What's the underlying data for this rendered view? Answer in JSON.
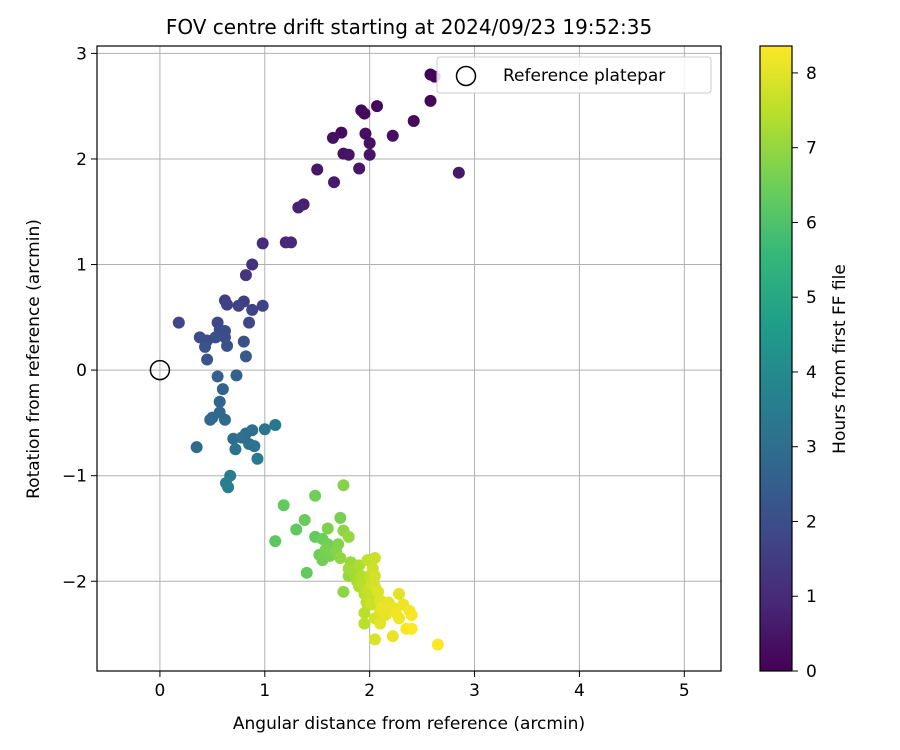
{
  "chart_data": {
    "type": "scatter",
    "title": "FOV centre drift starting at 2024/09/23 19:52:35",
    "xlabel": "Angular distance from reference (arcmin)",
    "ylabel": "Rotation from reference (arcmin)",
    "xlim": [
      -0.6,
      5.35
    ],
    "ylim": [
      -2.85,
      3.07
    ],
    "xticks": [
      0,
      1,
      2,
      3,
      4,
      5
    ],
    "yticks": [
      -2,
      -1,
      0,
      1,
      2,
      3
    ],
    "xtick_labels": [
      "0",
      "1",
      "2",
      "3",
      "4",
      "5"
    ],
    "ytick_labels": [
      "−2",
      "−1",
      "0",
      "1",
      "2",
      "3"
    ],
    "grid": true,
    "legend": {
      "position": "top-right",
      "entries": [
        "Reference platepar"
      ]
    },
    "reference_point": {
      "x": 0,
      "y": 0,
      "label": "Reference platepar"
    },
    "colorbar": {
      "label": "Hours from first FF file",
      "min": 0,
      "max": 8.36,
      "ticks": [
        0,
        1,
        2,
        3,
        4,
        5,
        6,
        7,
        8
      ],
      "tick_labels": [
        "0",
        "1",
        "2",
        "3",
        "4",
        "5",
        "6",
        "7",
        "8"
      ],
      "colormap": [
        "#440154",
        "#482878",
        "#3e4989",
        "#31688e",
        "#26828e",
        "#1f9e89",
        "#35b779",
        "#6ece58",
        "#b5de2b",
        "#fde725"
      ]
    },
    "series": [
      {
        "values": [
          [
            2.58,
            2.8,
            0.05
          ],
          [
            2.62,
            2.78,
            0.08
          ],
          [
            2.58,
            2.55,
            0.12
          ],
          [
            2.07,
            2.5,
            0.15
          ],
          [
            1.92,
            2.46,
            0.18
          ],
          [
            1.95,
            2.43,
            0.21
          ],
          [
            2.42,
            2.36,
            0.24
          ],
          [
            1.73,
            2.25,
            0.27
          ],
          [
            1.96,
            2.24,
            0.3
          ],
          [
            2.22,
            2.22,
            0.33
          ],
          [
            1.65,
            2.2,
            0.36
          ],
          [
            2.0,
            2.15,
            0.39
          ],
          [
            1.75,
            2.05,
            0.42
          ],
          [
            1.8,
            2.04,
            0.45
          ],
          [
            2.0,
            2.04,
            0.48
          ],
          [
            1.5,
            1.9,
            0.5
          ],
          [
            1.9,
            1.91,
            0.53
          ],
          [
            2.85,
            1.87,
            0.57
          ],
          [
            1.66,
            1.78,
            0.6
          ],
          [
            1.37,
            1.57,
            0.75
          ],
          [
            1.32,
            1.54,
            0.8
          ],
          [
            1.2,
            1.21,
            0.95
          ],
          [
            1.25,
            1.21,
            1.0
          ],
          [
            0.98,
            1.2,
            1.05
          ],
          [
            0.88,
            1.0,
            1.2
          ],
          [
            0.82,
            0.9,
            1.3
          ],
          [
            0.62,
            0.66,
            1.5
          ],
          [
            0.8,
            0.65,
            1.55
          ],
          [
            0.64,
            0.62,
            1.6
          ],
          [
            0.75,
            0.61,
            1.62
          ],
          [
            0.98,
            0.61,
            1.65
          ],
          [
            0.88,
            0.57,
            1.7
          ],
          [
            0.55,
            0.45,
            1.8
          ],
          [
            0.85,
            0.45,
            1.82
          ],
          [
            0.18,
            0.45,
            1.85
          ],
          [
            0.57,
            0.38,
            1.9
          ],
          [
            0.62,
            0.37,
            1.92
          ],
          [
            0.38,
            0.31,
            1.95
          ],
          [
            0.62,
            0.31,
            1.98
          ],
          [
            0.45,
            0.28,
            2.0
          ],
          [
            0.53,
            0.31,
            2.05
          ],
          [
            0.8,
            0.27,
            2.1
          ],
          [
            0.64,
            0.23,
            2.12
          ],
          [
            0.43,
            0.22,
            2.15
          ],
          [
            0.45,
            0.1,
            2.2
          ],
          [
            0.82,
            0.13,
            2.4
          ],
          [
            0.55,
            -0.06,
            2.55
          ],
          [
            0.73,
            -0.05,
            2.6
          ],
          [
            0.6,
            -0.18,
            2.65
          ],
          [
            0.57,
            -0.3,
            2.7
          ],
          [
            0.5,
            -0.45,
            2.75
          ],
          [
            0.57,
            -0.4,
            2.78
          ],
          [
            0.48,
            -0.47,
            2.82
          ],
          [
            0.62,
            -0.47,
            2.85
          ],
          [
            0.35,
            -0.73,
            2.9
          ],
          [
            0.7,
            -0.65,
            2.95
          ],
          [
            0.82,
            -0.6,
            3.0
          ],
          [
            0.88,
            -0.57,
            3.05
          ],
          [
            0.78,
            -0.64,
            3.08
          ],
          [
            0.85,
            -0.7,
            3.1
          ],
          [
            0.9,
            -0.72,
            3.15
          ],
          [
            0.72,
            -0.75,
            3.2
          ],
          [
            1.0,
            -0.56,
            3.3
          ],
          [
            1.1,
            -0.52,
            3.35
          ],
          [
            0.93,
            -0.84,
            3.4
          ],
          [
            0.67,
            -1.0,
            3.5
          ],
          [
            0.63,
            -1.07,
            3.55
          ],
          [
            0.65,
            -1.11,
            3.6
          ],
          [
            1.75,
            -1.09,
            6.8
          ],
          [
            1.18,
            -1.28,
            6.3
          ],
          [
            1.48,
            -1.19,
            6.5
          ],
          [
            1.38,
            -1.42,
            6.4
          ],
          [
            1.3,
            -1.51,
            6.25
          ],
          [
            1.72,
            -1.4,
            6.6
          ],
          [
            1.6,
            -1.5,
            6.7
          ],
          [
            1.48,
            -1.58,
            6.35
          ],
          [
            1.1,
            -1.62,
            6.2
          ],
          [
            1.55,
            -1.6,
            6.45
          ],
          [
            1.75,
            -1.52,
            6.9
          ],
          [
            1.8,
            -1.58,
            7.0
          ],
          [
            1.6,
            -1.65,
            6.55
          ],
          [
            1.7,
            -1.65,
            6.75
          ],
          [
            1.58,
            -1.7,
            6.65
          ],
          [
            1.68,
            -1.72,
            6.8
          ],
          [
            1.52,
            -1.75,
            6.5
          ],
          [
            1.62,
            -1.76,
            6.6
          ],
          [
            1.72,
            -1.78,
            6.95
          ],
          [
            1.55,
            -1.8,
            6.55
          ],
          [
            1.82,
            -1.82,
            7.1
          ],
          [
            1.98,
            -1.8,
            7.6
          ],
          [
            2.05,
            -1.78,
            7.7
          ],
          [
            1.9,
            -1.85,
            7.3
          ],
          [
            1.8,
            -1.88,
            7.15
          ],
          [
            2.03,
            -1.88,
            7.75
          ],
          [
            1.4,
            -1.92,
            6.3
          ],
          [
            1.85,
            -1.92,
            7.2
          ],
          [
            1.92,
            -1.95,
            7.4
          ],
          [
            2.0,
            -1.95,
            7.6
          ],
          [
            2.05,
            -1.95,
            7.8
          ],
          [
            1.8,
            -1.95,
            7.0
          ],
          [
            1.88,
            -2.0,
            7.3
          ],
          [
            1.93,
            -2.02,
            7.45
          ],
          [
            2.02,
            -2.03,
            7.7
          ],
          [
            2.05,
            -2.05,
            7.85
          ],
          [
            1.9,
            -2.05,
            7.35
          ],
          [
            1.75,
            -2.1,
            6.9
          ],
          [
            1.98,
            -2.08,
            7.6
          ],
          [
            2.08,
            -2.1,
            7.9
          ],
          [
            1.95,
            -2.12,
            7.5
          ],
          [
            2.0,
            -2.15,
            7.65
          ],
          [
            2.28,
            -2.12,
            8.0
          ],
          [
            2.1,
            -2.18,
            7.95
          ],
          [
            2.18,
            -2.2,
            8.05
          ],
          [
            1.97,
            -2.2,
            7.55
          ],
          [
            2.02,
            -2.22,
            7.7
          ],
          [
            2.12,
            -2.25,
            8.1
          ],
          [
            2.32,
            -2.22,
            8.15
          ],
          [
            2.22,
            -2.25,
            8.1
          ],
          [
            2.1,
            -2.28,
            7.98
          ],
          [
            1.95,
            -2.3,
            7.5
          ],
          [
            2.25,
            -2.3,
            8.2
          ],
          [
            2.38,
            -2.28,
            8.25
          ],
          [
            2.15,
            -2.32,
            8.05
          ],
          [
            2.05,
            -2.35,
            7.85
          ],
          [
            2.28,
            -2.35,
            8.2
          ],
          [
            2.4,
            -2.32,
            8.3
          ],
          [
            1.95,
            -2.4,
            7.5
          ],
          [
            2.1,
            -2.4,
            8.0
          ],
          [
            2.35,
            -2.45,
            8.3
          ],
          [
            2.4,
            -2.45,
            8.35
          ],
          [
            2.22,
            -2.52,
            8.1
          ],
          [
            2.05,
            -2.55,
            7.9
          ],
          [
            2.65,
            -2.6,
            8.36
          ]
        ]
      }
    ]
  }
}
